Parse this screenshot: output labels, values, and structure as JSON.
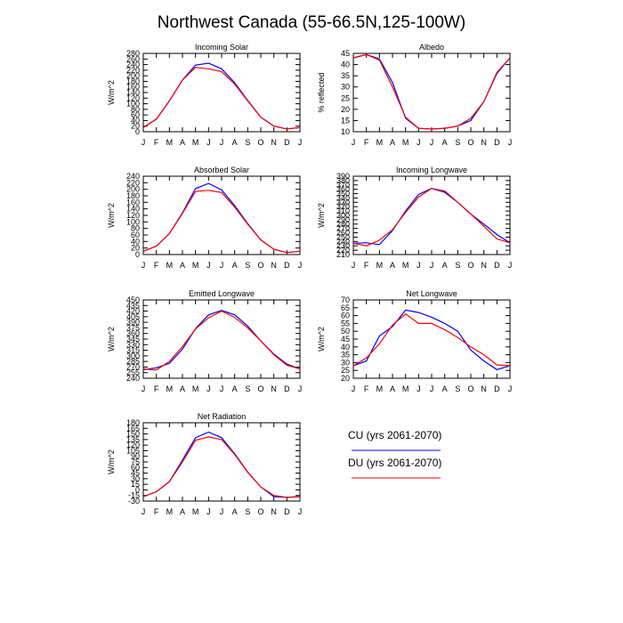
{
  "figure": {
    "title": "Northwest Canada (55-66.5N,125-100W)"
  },
  "legend": {
    "items": [
      {
        "label": "CU (yrs 2061-2070)",
        "color": "#0000ff"
      },
      {
        "label": "DU (yrs 2061-2070)",
        "color": "#ff0000"
      }
    ]
  },
  "chart_data": [
    {
      "type": "line",
      "title": "Incoming Solar",
      "ylabel": "W/m^2",
      "x": [
        "J",
        "F",
        "M",
        "A",
        "M",
        "J",
        "J",
        "A",
        "S",
        "O",
        "N",
        "D",
        "J"
      ],
      "ylim": [
        0,
        280
      ],
      "yticks": [
        0,
        20,
        40,
        60,
        80,
        100,
        120,
        140,
        160,
        180,
        200,
        220,
        240,
        260,
        280
      ],
      "series": [
        {
          "name": "CU (yrs 2061-2070)",
          "color": "#0000ff",
          "values": [
            15,
            45,
            110,
            185,
            238,
            245,
            225,
            175,
            112,
            52,
            20,
            10,
            15
          ]
        },
        {
          "name": "DU (yrs 2061-2070)",
          "color": "#ff0000",
          "values": [
            15,
            45,
            110,
            185,
            230,
            225,
            215,
            170,
            110,
            52,
            20,
            10,
            15
          ]
        }
      ]
    },
    {
      "type": "line",
      "title": "Albedo",
      "ylabel": "% reflected",
      "x": [
        "J",
        "F",
        "M",
        "A",
        "M",
        "J",
        "J",
        "A",
        "S",
        "O",
        "N",
        "D",
        "J"
      ],
      "ylim": [
        10,
        45
      ],
      "yticks": [
        10,
        15,
        20,
        25,
        30,
        35,
        40,
        45
      ],
      "series": [
        {
          "name": "CU (yrs 2061-2070)",
          "color": "#0000ff",
          "values": [
            43,
            44.5,
            42.5,
            32,
            16,
            11.5,
            11.2,
            11.5,
            12.5,
            15,
            23.5,
            36,
            43
          ]
        },
        {
          "name": "DU (yrs 2061-2070)",
          "color": "#ff0000",
          "values": [
            43,
            44.5,
            42,
            30,
            16.5,
            11.5,
            11.2,
            11.5,
            12.5,
            16,
            23.5,
            36.5,
            43
          ]
        }
      ]
    },
    {
      "type": "line",
      "title": "Absorbed Solar",
      "ylabel": "W/m^2",
      "x": [
        "J",
        "F",
        "M",
        "A",
        "M",
        "J",
        "J",
        "A",
        "S",
        "O",
        "N",
        "D",
        "J"
      ],
      "ylim": [
        0,
        240
      ],
      "yticks": [
        0,
        20,
        40,
        60,
        80,
        100,
        120,
        140,
        160,
        180,
        200,
        220,
        240
      ],
      "series": [
        {
          "name": "CU (yrs 2061-2070)",
          "color": "#0000ff",
          "values": [
            10,
            26,
            64,
            128,
            202,
            218,
            198,
            150,
            95,
            45,
            16,
            6,
            10
          ]
        },
        {
          "name": "DU (yrs 2061-2070)",
          "color": "#ff0000",
          "values": [
            10,
            26,
            64,
            126,
            193,
            197,
            190,
            145,
            93,
            45,
            16,
            6,
            10
          ]
        }
      ]
    },
    {
      "type": "line",
      "title": "Incoming Longwave",
      "ylabel": "W/m^2",
      "x": [
        "J",
        "F",
        "M",
        "A",
        "M",
        "J",
        "J",
        "A",
        "S",
        "O",
        "N",
        "D",
        "J"
      ],
      "ylim": [
        210,
        390
      ],
      "yticks": [
        210,
        220,
        230,
        240,
        250,
        260,
        270,
        280,
        290,
        300,
        310,
        320,
        330,
        340,
        350,
        360,
        370,
        380,
        390
      ],
      "series": [
        {
          "name": "CU (yrs 2061-2070)",
          "color": "#0000ff",
          "values": [
            236,
            237,
            233,
            265,
            310,
            348,
            362,
            353,
            330,
            303,
            280,
            256,
            237
          ]
        },
        {
          "name": "DU (yrs 2061-2070)",
          "color": "#ff0000",
          "values": [
            236,
            230,
            243,
            267,
            307,
            342,
            362,
            356,
            330,
            303,
            275,
            246,
            237
          ]
        }
      ]
    },
    {
      "type": "line",
      "title": "Emitted Longwave",
      "ylabel": "W/m^2",
      "x": [
        "J",
        "F",
        "M",
        "A",
        "M",
        "J",
        "J",
        "A",
        "S",
        "O",
        "N",
        "D",
        "J"
      ],
      "ylim": [
        240,
        450
      ],
      "yticks": [
        240,
        255,
        270,
        285,
        300,
        315,
        330,
        345,
        360,
        375,
        390,
        405,
        420,
        435,
        450
      ],
      "series": [
        {
          "name": "CU (yrs 2061-2070)",
          "color": "#0000ff",
          "values": [
            263,
            268,
            280,
            318,
            373,
            410,
            422,
            410,
            380,
            340,
            305,
            278,
            265
          ]
        },
        {
          "name": "DU (yrs 2061-2070)",
          "color": "#ff0000",
          "values": [
            265,
            262,
            285,
            325,
            372,
            402,
            420,
            403,
            375,
            340,
            303,
            275,
            265
          ]
        }
      ]
    },
    {
      "type": "line",
      "title": "Net Longwave",
      "ylabel": "W/m^2",
      "x": [
        "J",
        "F",
        "M",
        "A",
        "M",
        "J",
        "J",
        "A",
        "S",
        "O",
        "N",
        "D",
        "J"
      ],
      "ylim": [
        20,
        70
      ],
      "yticks": [
        20,
        25,
        30,
        35,
        40,
        45,
        50,
        55,
        60,
        65,
        70
      ],
      "series": [
        {
          "name": "CU (yrs 2061-2070)",
          "color": "#0000ff",
          "values": [
            28,
            31,
            47,
            53,
            63.5,
            62,
            59,
            55,
            50,
            38,
            31,
            25.5,
            28
          ]
        },
        {
          "name": "DU (yrs 2061-2070)",
          "color": "#ff0000",
          "values": [
            28,
            33,
            42,
            54,
            61,
            55,
            55,
            51,
            46,
            40,
            35,
            28.5,
            28
          ]
        }
      ]
    },
    {
      "type": "line",
      "title": "Net Radiation",
      "ylabel": "W/m^2",
      "x": [
        "J",
        "F",
        "M",
        "A",
        "M",
        "J",
        "J",
        "A",
        "S",
        "O",
        "N",
        "D",
        "J"
      ],
      "ylim": [
        -30,
        180
      ],
      "yticks": [
        -30,
        -15,
        0,
        15,
        30,
        45,
        60,
        75,
        90,
        105,
        120,
        135,
        150,
        165,
        180
      ],
      "series": [
        {
          "name": "CU (yrs 2061-2070)",
          "color": "#0000ff",
          "values": [
            -18,
            -5,
            22,
            80,
            140,
            155,
            140,
            97,
            48,
            8,
            -18,
            -20,
            -18
          ]
        },
        {
          "name": "DU (yrs 2061-2070)",
          "color": "#ff0000",
          "values": [
            -18,
            -5,
            22,
            75,
            133,
            142,
            135,
            95,
            47,
            8,
            -15,
            -20,
            -18
          ]
        }
      ]
    }
  ]
}
